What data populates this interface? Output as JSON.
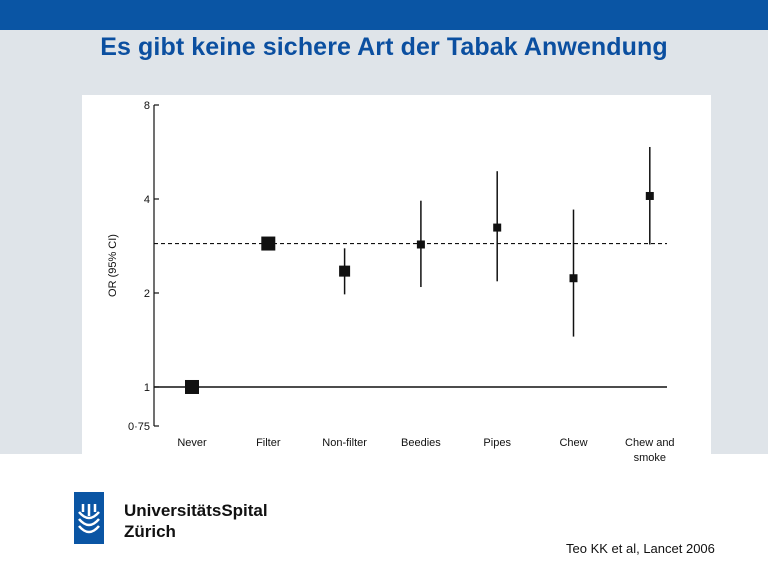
{
  "slide": {
    "title": "Es gibt keine sichere Art der Tabak Anwendung",
    "citation": "Teo KK et al, Lancet 2006",
    "brand_line1": "UniversitätsSpital",
    "brand_line2": "Zürich",
    "header_color": "#0a55a4",
    "title_color": "#0b4fa0"
  },
  "chart_data": {
    "type": "scatter",
    "ylabel": "OR (95% CI)",
    "yscale": "log",
    "ylim": [
      0.75,
      8
    ],
    "yticks": [
      {
        "value": 0.75,
        "label": "0·75"
      },
      {
        "value": 1,
        "label": "1"
      },
      {
        "value": 2,
        "label": "2"
      },
      {
        "value": 4,
        "label": "4"
      },
      {
        "value": 8,
        "label": "8"
      }
    ],
    "categories": [
      [
        "Never"
      ],
      [
        "Filter"
      ],
      [
        "Non-filter"
      ],
      [
        "Beedies"
      ],
      [
        "Pipes"
      ],
      [
        "Chew"
      ],
      [
        "Chew and",
        "smoke"
      ]
    ],
    "points": [
      {
        "or": 1.0,
        "lo": 1.0,
        "hi": 1.0,
        "weight": "large"
      },
      {
        "or": 2.88,
        "lo": 2.78,
        "hi": 2.98,
        "weight": "large"
      },
      {
        "or": 2.35,
        "lo": 1.98,
        "hi": 2.78,
        "weight": "medium"
      },
      {
        "or": 2.86,
        "lo": 2.09,
        "hi": 3.95,
        "weight": "small"
      },
      {
        "or": 3.24,
        "lo": 2.18,
        "hi": 4.91,
        "weight": "small"
      },
      {
        "or": 2.23,
        "lo": 1.45,
        "hi": 3.7,
        "weight": "small"
      },
      {
        "or": 4.09,
        "lo": 2.86,
        "hi": 5.87,
        "weight": "small"
      }
    ],
    "reference_line": 1,
    "dashed_line": 2.88,
    "grid": false,
    "legend": "none"
  }
}
